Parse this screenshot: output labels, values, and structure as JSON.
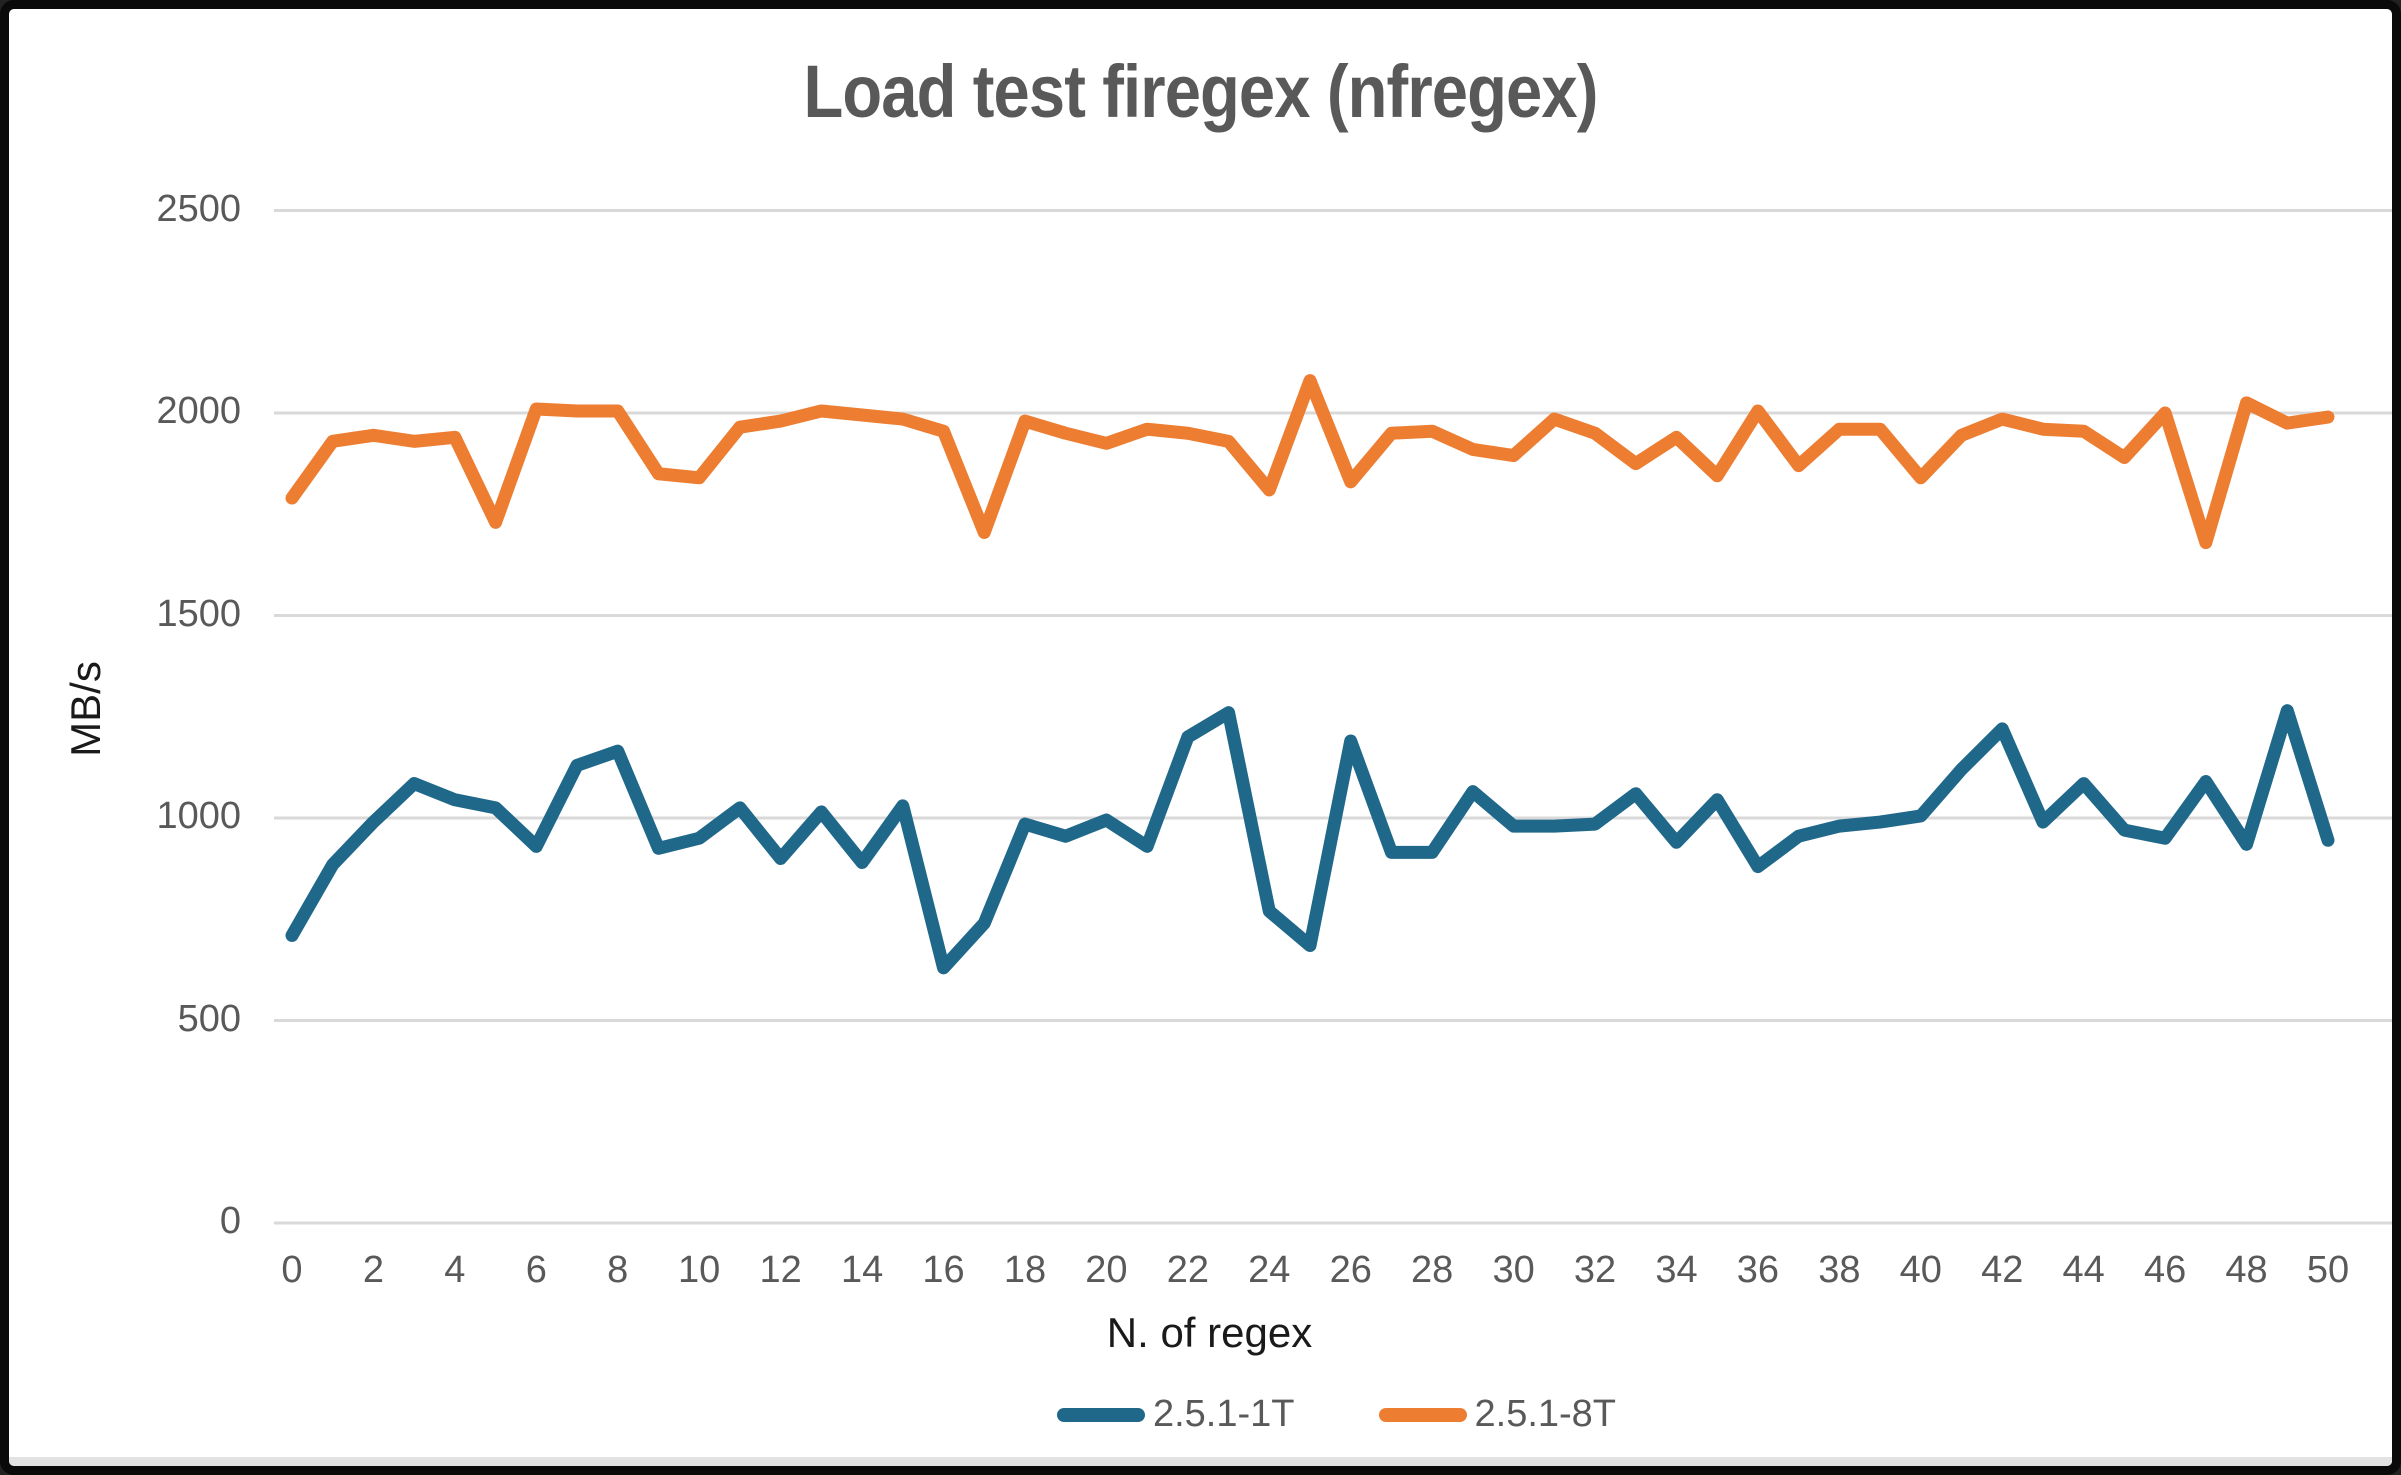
{
  "chart_data": {
    "type": "line",
    "title": "Load test firegex (nfregex)",
    "xlabel": "N. of regex",
    "ylabel": "MB/s",
    "grid": "horizontal",
    "legend_position": "bottom",
    "x": [
      0,
      1,
      2,
      3,
      4,
      5,
      6,
      7,
      8,
      9,
      10,
      11,
      12,
      13,
      14,
      15,
      16,
      17,
      18,
      19,
      20,
      21,
      22,
      23,
      24,
      25,
      26,
      27,
      28,
      29,
      30,
      31,
      32,
      33,
      34,
      35,
      36,
      37,
      38,
      39,
      40,
      41,
      42,
      43,
      44,
      45,
      46,
      47,
      48,
      49,
      50
    ],
    "series": [
      {
        "name": "2.5.1-1T",
        "color": "#20688A",
        "values": [
          710,
          885,
          990,
          1085,
          1045,
          1025,
          930,
          1130,
          1165,
          925,
          950,
          1025,
          900,
          1015,
          890,
          1030,
          630,
          740,
          985,
          955,
          995,
          930,
          1200,
          1260,
          770,
          685,
          1190,
          915,
          915,
          1065,
          980,
          980,
          985,
          1060,
          940,
          1045,
          880,
          955,
          980,
          990,
          1005,
          1120,
          1220,
          990,
          1085,
          970,
          950,
          1090,
          935,
          1265,
          945
        ]
      },
      {
        "name": "2.5.1-8T",
        "color": "#ED7D31",
        "values": [
          1790,
          1930,
          1945,
          1930,
          1940,
          1730,
          2010,
          2005,
          2005,
          1850,
          1840,
          1965,
          1980,
          2005,
          1995,
          1985,
          1955,
          1705,
          1980,
          1950,
          1925,
          1960,
          1950,
          1930,
          1810,
          2080,
          1830,
          1950,
          1955,
          1910,
          1895,
          1985,
          1950,
          1875,
          1940,
          1845,
          2005,
          1870,
          1960,
          1960,
          1840,
          1945,
          1985,
          1960,
          1955,
          1890,
          2000,
          1680,
          2025,
          1975,
          1990
        ]
      }
    ],
    "x_axis": {
      "range": [
        0,
        50
      ],
      "ticks": [
        0,
        2,
        4,
        6,
        8,
        10,
        12,
        14,
        16,
        18,
        20,
        22,
        24,
        26,
        28,
        30,
        32,
        34,
        36,
        38,
        40,
        42,
        44,
        46,
        48,
        50
      ]
    },
    "y_axis": {
      "range": [
        0,
        2500
      ],
      "ticks": [
        0,
        500,
        1000,
        1500,
        2000,
        2500
      ]
    },
    "style": {
      "grid_color": "#D9D9D9",
      "tick_label_color": "#595959",
      "title_color": "#595959",
      "axis_title_color": "#1A1A1A",
      "background": "#FFFFFF",
      "frame_color": "#0A0A0A"
    }
  }
}
